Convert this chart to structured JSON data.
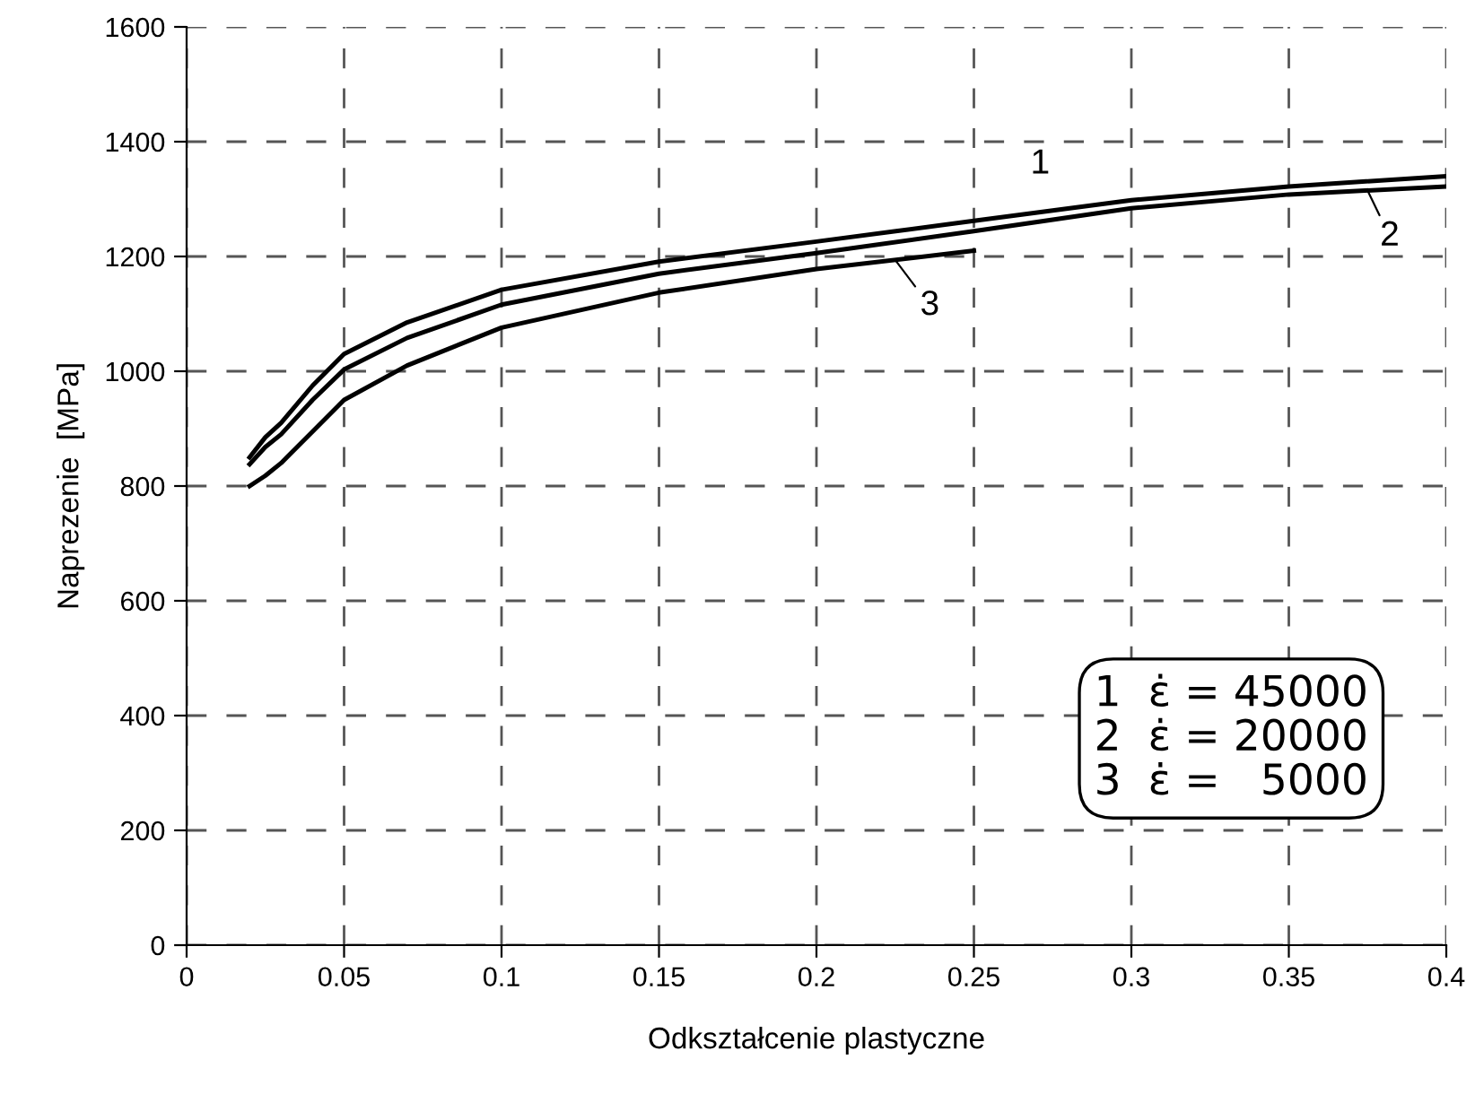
{
  "chart_data": {
    "type": "line",
    "xlabel": "Odkształcenie plastyczne",
    "ylabel": "Naprezenie  [MPa]",
    "x": [
      0.02,
      0.025,
      0.03,
      0.04,
      0.05,
      0.07,
      0.1,
      0.15,
      0.2,
      0.25,
      0.3,
      0.35,
      0.4
    ],
    "series": [
      {
        "name": "1",
        "color": "#000000",
        "values": [
          850,
          885,
          910,
          975,
          1030,
          1085,
          1142,
          1191,
          1226,
          1262,
          1298,
          1322,
          1340
        ]
      },
      {
        "name": "2",
        "color": "#000000",
        "values": [
          838,
          868,
          890,
          950,
          1003,
          1058,
          1116,
          1170,
          1206,
          1244,
          1284,
          1308,
          1322
        ]
      },
      {
        "name": "3",
        "color": "#000000",
        "values": [
          800,
          818,
          840,
          895,
          950,
          1010,
          1076,
          1137,
          1178,
          1210,
          null,
          null,
          null
        ]
      }
    ],
    "xlim": [
      0,
      0.4
    ],
    "ylim": [
      0,
      1600
    ],
    "xticks": [
      0,
      0.05,
      0.1,
      0.15,
      0.2,
      0.25,
      0.3,
      0.35,
      0.4
    ],
    "yticks": [
      0,
      200,
      400,
      600,
      800,
      1000,
      1200,
      1400,
      1600
    ],
    "grid": true,
    "legend": "top right",
    "marker": "none",
    "line_style": "solid",
    "annotations": [
      "1  ε̇ = 45000",
      "2  ε̇ = 20000",
      "3  ε̇ =   5000"
    ]
  }
}
